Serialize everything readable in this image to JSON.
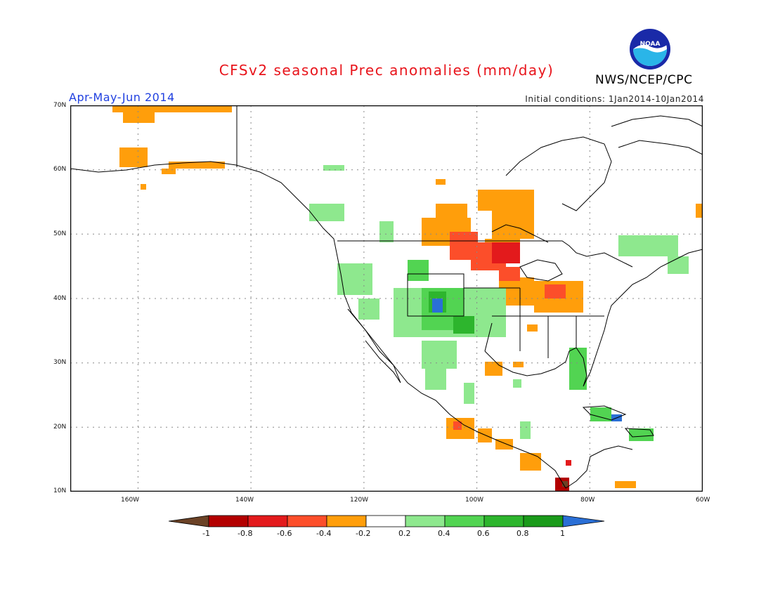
{
  "header": {
    "title": "CFSv2 seasonal Prec anomalies (mm/day)",
    "season": "Apr-May-Jun 2014",
    "initial_conditions": "Initial conditions: 1Jan2014-10Jan2014",
    "agency": "NWS/NCEP/CPC",
    "logo_text": "NOAA"
  },
  "map": {
    "lat_labels": [
      "70N",
      "60N",
      "50N",
      "40N",
      "30N",
      "20N",
      "10N"
    ],
    "lon_labels": [
      "160W",
      "140W",
      "120W",
      "100W",
      "80W",
      "60W"
    ],
    "extent": {
      "lon_min": -172,
      "lon_max": -60,
      "lat_min": 10,
      "lat_max": 70
    }
  },
  "colorbar": {
    "ticks": [
      "-1",
      "-0.8",
      "-0.6",
      "-0.4",
      "-0.2",
      "0.2",
      "0.4",
      "0.6",
      "0.8",
      "1"
    ],
    "colors": {
      "lt_-1": "#6b4226",
      "-1_-0.8": "#b30000",
      "-0.8_-0.6": "#e31a1c",
      "-0.6_-0.4": "#fc4e2a",
      "-0.4_-0.2": "#ff9e0b",
      "-0.2_0.2": "#ffffff",
      "0.2_0.4": "#8ee88e",
      "0.4_0.6": "#52d452",
      "0.6_0.8": "#2db52d",
      "0.8_1": "#1a9a1a",
      "gt_1": "#2a6fd6"
    }
  }
}
